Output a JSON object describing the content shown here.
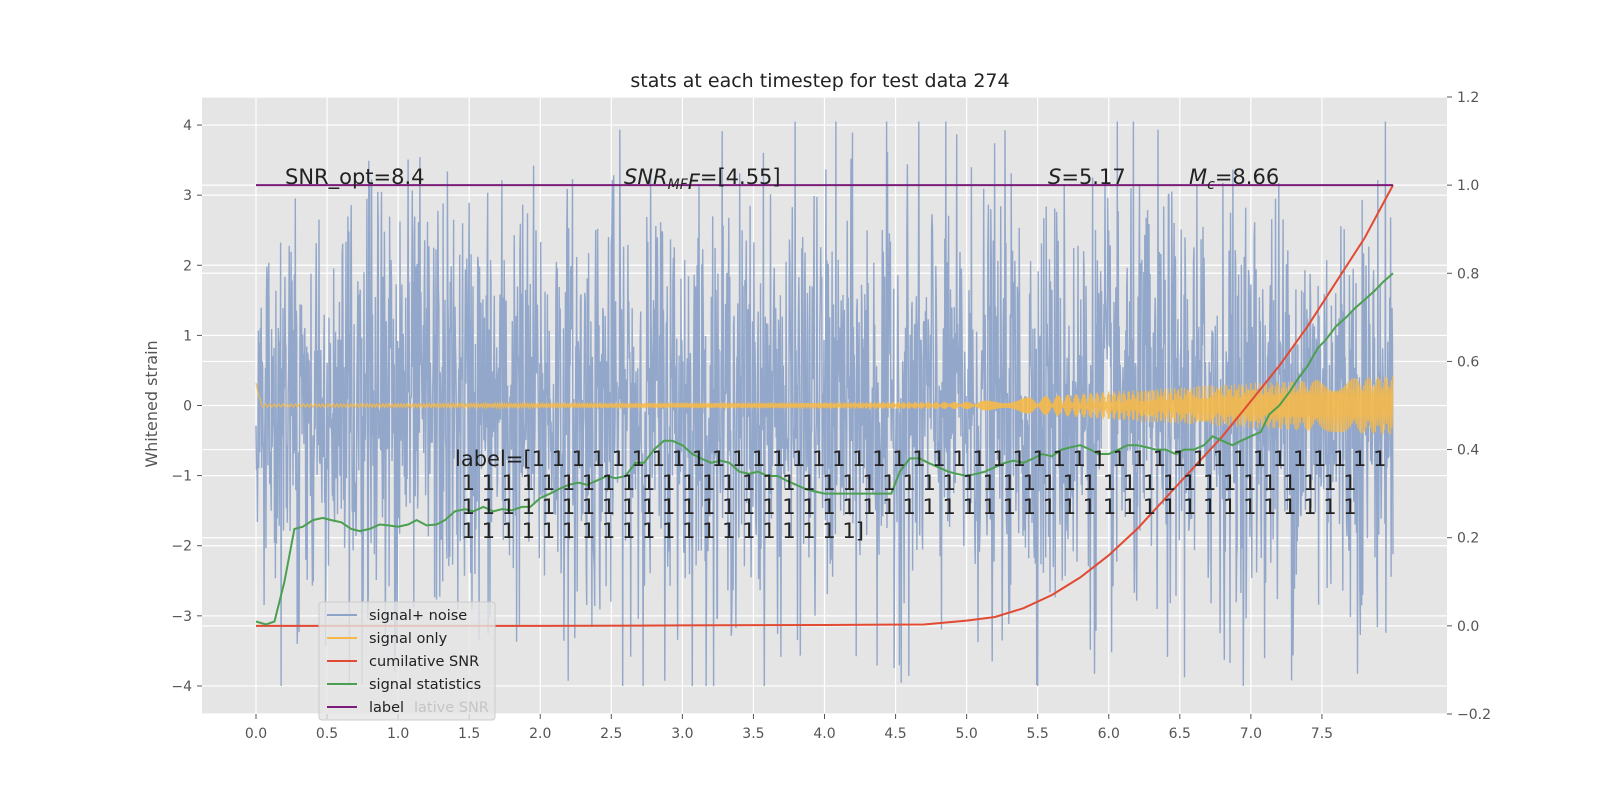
{
  "chart_data": {
    "type": "line",
    "title": "stats at each timestep for test data 274",
    "ylabel": "Whitened strain",
    "xlabel": "",
    "xlim": [
      -0.38,
      8.38
    ],
    "ylim_left": [
      -4.4,
      4.4
    ],
    "ylim_right": [
      -0.2,
      1.2
    ],
    "x_ticks": [
      "0.0",
      "0.5",
      "1.0",
      "1.5",
      "2.0",
      "2.5",
      "3.0",
      "3.5",
      "4.0",
      "4.5",
      "5.0",
      "5.5",
      "6.0",
      "6.5",
      "7.0",
      "7.5"
    ],
    "y_ticks_left": [
      "−4",
      "−3",
      "−2",
      "−1",
      "0",
      "1",
      "2",
      "3",
      "4"
    ],
    "y_ticks_right": [
      "−0.2",
      "0.0",
      "0.2",
      "0.4",
      "0.6",
      "0.8",
      "1.0",
      "1.2"
    ],
    "grid": true,
    "background": "#e5e5e5",
    "annotations": {
      "snr_opt": "SNR_opt=8.4",
      "snr_mf_main": "SNR",
      "snr_mf_sub": "MF",
      "snr_mf_rest": "=[4.55]",
      "s_main": "S",
      "s_rest": "=5.17",
      "mc_main": "M",
      "mc_sub": "c",
      "mc_rest": "=8.66",
      "label_lines": [
        "label=[1 1 1 1 1 1 1 1 1 1 1 1 1 1 1 1 1 1 1 1 1 1 1 1 1 1 1 1 1 1 1 1 1 1 1 1 1 1 1 1 1 1 1",
        " 1 1 1 1 1 1 1 1 1 1 1 1 1 1 1 1 1 1 1 1 1 1 1 1 1 1 1 1 1 1 1 1 1 1 1 1 1 1 1 1 1 1 1 1 1",
        " 1 1 1 1 1 1 1 1 1 1 1 1 1 1 1 1 1 1 1 1 1 1 1 1 1 1 1 1 1 1 1 1 1 1 1 1 1 1 1 1 1 1 1 1 1",
        " 1 1 1 1 1 1 1 1 1 1 1 1 1 1 1 1 1 1 1 1]"
      ]
    },
    "legend": {
      "placement": "lower-left",
      "entries": [
        {
          "label": "signal+ noise",
          "color": "#8da3c8"
        },
        {
          "label": "signal only",
          "color": "#f5b94a"
        },
        {
          "label": "cumilative SNR",
          "color": "#e24a33"
        },
        {
          "label": "signal statistics",
          "color": "#4c9f50"
        },
        {
          "label": "label",
          "color": "#7b1c7b"
        }
      ],
      "ghost_text": "lative SNR"
    },
    "series": [
      {
        "name": "signal+ noise",
        "axis": "left",
        "color": "#8da3c8",
        "style": "dense-noise",
        "x_start": 0.0,
        "x_end": 8.0,
        "typical_amplitude": 2.0,
        "max_value": 4.05,
        "min_value": -4.0
      },
      {
        "name": "signal only",
        "axis": "left",
        "color": "#f5b94a",
        "style": "chirp",
        "x_start": 0.0,
        "x_end": 8.0,
        "amplitude_envelope": {
          "x": [
            0.0,
            5.0,
            6.0,
            7.0,
            8.0
          ],
          "y": [
            0.02,
            0.05,
            0.2,
            0.32,
            0.42
          ]
        }
      },
      {
        "name": "cumilative SNR",
        "axis": "right",
        "color": "#e24a33",
        "x": [
          0.0,
          1.0,
          2.0,
          3.0,
          4.0,
          4.7,
          5.0,
          5.2,
          5.4,
          5.6,
          5.8,
          6.0,
          6.2,
          6.4,
          6.6,
          6.8,
          7.0,
          7.2,
          7.4,
          7.6,
          7.8,
          8.0
        ],
        "y": [
          0.0,
          0.0,
          0.0,
          0.001,
          0.002,
          0.003,
          0.012,
          0.02,
          0.04,
          0.07,
          0.11,
          0.16,
          0.22,
          0.29,
          0.36,
          0.43,
          0.51,
          0.59,
          0.68,
          0.78,
          0.88,
          1.0
        ]
      },
      {
        "name": "signal statistics",
        "axis": "right",
        "color": "#4c9f50",
        "x": [
          0.0,
          0.07,
          0.13,
          0.2,
          0.27,
          0.33,
          0.4,
          0.47,
          0.53,
          0.6,
          0.67,
          0.73,
          0.8,
          0.87,
          0.93,
          1.0,
          1.07,
          1.13,
          1.2,
          1.27,
          1.33,
          1.4,
          1.47,
          1.53,
          1.6,
          1.67,
          1.73,
          1.8,
          1.87,
          1.93,
          2.0,
          2.07,
          2.13,
          2.2,
          2.27,
          2.33,
          2.4,
          2.47,
          2.53,
          2.6,
          2.67,
          2.73,
          2.8,
          2.87,
          2.93,
          3.0,
          3.07,
          3.13,
          3.2,
          3.27,
          3.33,
          3.4,
          3.47,
          3.53,
          3.6,
          3.67,
          3.73,
          3.8,
          3.87,
          3.93,
          4.0,
          4.07,
          4.13,
          4.2,
          4.27,
          4.33,
          4.4,
          4.47,
          4.53,
          4.6,
          4.67,
          4.73,
          4.8,
          4.87,
          4.93,
          5.0,
          5.07,
          5.13,
          5.2,
          5.27,
          5.33,
          5.4,
          5.47,
          5.53,
          5.6,
          5.67,
          5.73,
          5.8,
          5.87,
          5.93,
          6.0,
          6.07,
          6.13,
          6.2,
          6.27,
          6.33,
          6.4,
          6.47,
          6.53,
          6.6,
          6.67,
          6.73,
          6.8,
          6.87,
          6.93,
          7.0,
          7.07,
          7.13,
          7.2,
          7.27,
          7.33,
          7.4,
          7.47,
          7.53,
          7.6,
          7.67,
          7.73,
          7.8,
          7.87,
          7.93,
          8.0
        ],
        "y": [
          0.01,
          0.003,
          0.01,
          0.1,
          0.22,
          0.225,
          0.24,
          0.245,
          0.24,
          0.235,
          0.22,
          0.215,
          0.22,
          0.23,
          0.228,
          0.225,
          0.23,
          0.24,
          0.228,
          0.23,
          0.24,
          0.26,
          0.265,
          0.26,
          0.27,
          0.26,
          0.265,
          0.262,
          0.27,
          0.27,
          0.29,
          0.3,
          0.31,
          0.32,
          0.325,
          0.32,
          0.33,
          0.34,
          0.335,
          0.34,
          0.37,
          0.37,
          0.4,
          0.42,
          0.42,
          0.41,
          0.39,
          0.38,
          0.37,
          0.375,
          0.37,
          0.35,
          0.345,
          0.35,
          0.34,
          0.34,
          0.33,
          0.32,
          0.31,
          0.305,
          0.3,
          0.3,
          0.3,
          0.3,
          0.3,
          0.3,
          0.3,
          0.3,
          0.35,
          0.38,
          0.38,
          0.37,
          0.36,
          0.35,
          0.345,
          0.34,
          0.345,
          0.35,
          0.36,
          0.37,
          0.375,
          0.37,
          0.38,
          0.39,
          0.385,
          0.4,
          0.405,
          0.41,
          0.4,
          0.39,
          0.39,
          0.4,
          0.41,
          0.41,
          0.405,
          0.4,
          0.4,
          0.39,
          0.4,
          0.4,
          0.41,
          0.43,
          0.42,
          0.41,
          0.42,
          0.43,
          0.44,
          0.48,
          0.5,
          0.53,
          0.56,
          0.59,
          0.63,
          0.65,
          0.68,
          0.7,
          0.72,
          0.74,
          0.76,
          0.78,
          0.8
        ]
      },
      {
        "name": "label",
        "axis": "right",
        "color": "#7b1c7b",
        "x": [
          0.0,
          8.0
        ],
        "y": [
          1.0,
          1.0
        ]
      }
    ]
  }
}
